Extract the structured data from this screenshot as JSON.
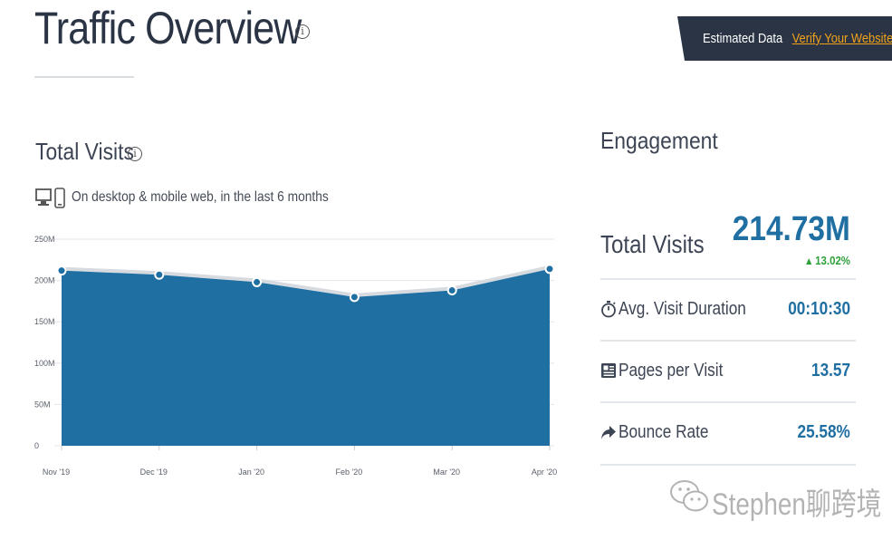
{
  "header": {
    "title": "Traffic Overview",
    "info_icon": "info-circle-icon",
    "estimated_label": "Estimated Data",
    "verify_link": "Verify Your Website",
    "banner_color": "#2b3444",
    "link_color": "#f0a21a"
  },
  "total_visits_section": {
    "title": "Total Visits",
    "info_icon": "info-circle-icon",
    "device_icons": [
      "desktop-icon",
      "mobile-icon"
    ],
    "description": "On desktop & mobile web, in the last 6 months"
  },
  "chart_data": {
    "type": "area",
    "x": [
      "Nov '19",
      "Dec '19",
      "Jan '20",
      "Feb '20",
      "Mar '20",
      "Apr '20"
    ],
    "series": [
      {
        "values": [
          212,
          207,
          198,
          180,
          188,
          214
        ],
        "color": "#1f6fa3"
      }
    ],
    "y_ticks": [
      "250M",
      "200M",
      "150M",
      "100M",
      "50M",
      "0"
    ],
    "ylim": [
      0,
      250
    ],
    "grid": true
  },
  "engagement": {
    "title": "Engagement",
    "total_visits_label": "Total Visits",
    "total_visits_value": "214.73M",
    "total_visits_change": "13.02%",
    "change_color": "#2fa03a",
    "value_color": "#1f6fa3",
    "metrics": [
      {
        "icon": "stopwatch-icon",
        "label": "Avg. Visit Duration",
        "value": "00:10:30"
      },
      {
        "icon": "pages-icon",
        "label": "Pages per Visit",
        "value": "13.57"
      },
      {
        "icon": "share-arrow-icon",
        "label": "Bounce Rate",
        "value": "25.58%"
      }
    ]
  },
  "watermark": {
    "icon": "wechat-icon",
    "text": "Stephen聊跨境"
  }
}
